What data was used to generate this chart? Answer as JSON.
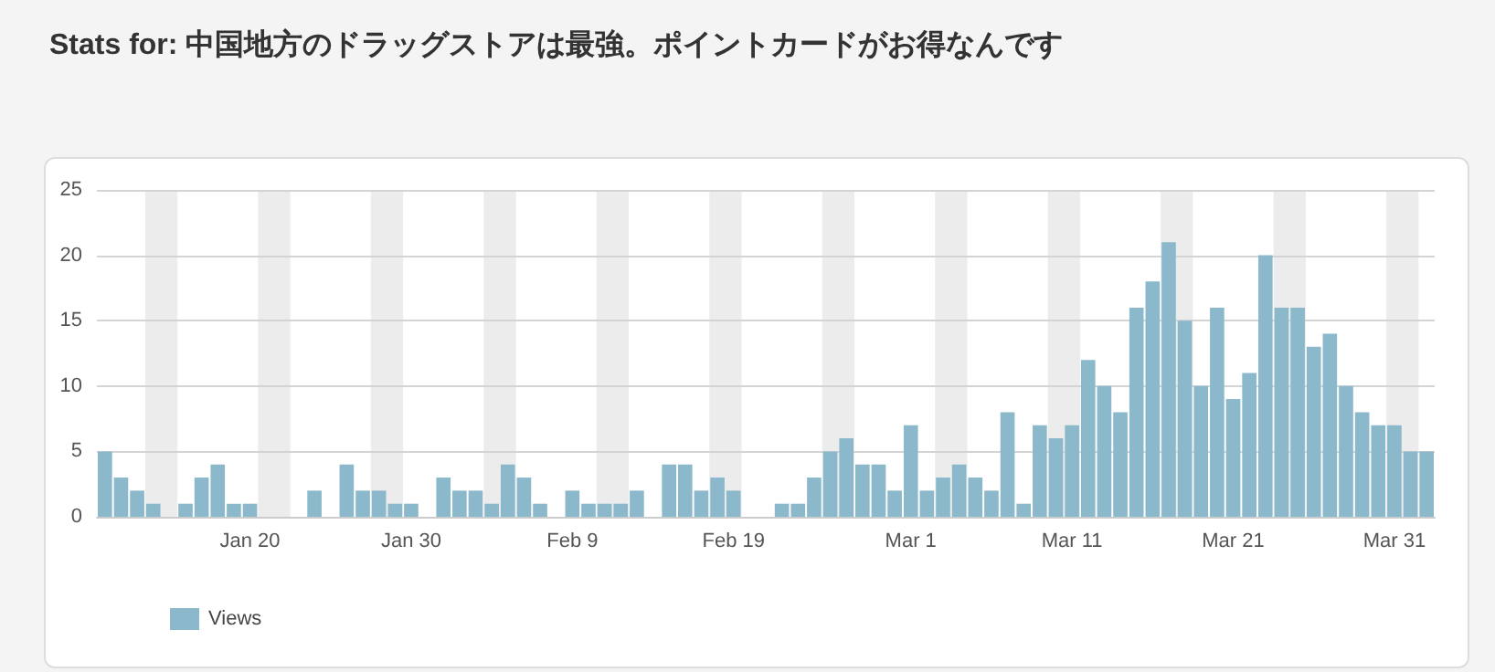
{
  "chart_data": {
    "type": "bar",
    "title": "Stats for: 中国地方のドラッグストアは最強。ポイントカードがお得なんです",
    "x": [
      "--01-11",
      "--01-12",
      "--01-13",
      "--01-14",
      "--01-15",
      "--01-16",
      "--01-17",
      "--01-18",
      "--01-19",
      "--01-20",
      "--01-21",
      "--01-22",
      "--01-23",
      "--01-24",
      "--01-25",
      "--01-26",
      "--01-27",
      "--01-28",
      "--01-29",
      "--01-30",
      "--01-31",
      "--02-01",
      "--02-02",
      "--02-03",
      "--02-04",
      "--02-05",
      "--02-06",
      "--02-07",
      "--02-08",
      "--02-09",
      "--02-10",
      "--02-11",
      "--02-12",
      "--02-13",
      "--02-14",
      "--02-15",
      "--02-16",
      "--02-17",
      "--02-18",
      "--02-19",
      "--02-20",
      "--02-21",
      "--02-22",
      "--02-23",
      "--02-24",
      "--02-25",
      "--02-26",
      "--02-27",
      "--02-28",
      "--02-29",
      "--03-01",
      "--03-02",
      "--03-03",
      "--03-04",
      "--03-05",
      "--03-06",
      "--03-07",
      "--03-08",
      "--03-09",
      "--03-10",
      "--03-11",
      "--03-12",
      "--03-13",
      "--03-14",
      "--03-15",
      "--03-16",
      "--03-17",
      "--03-18",
      "--03-19",
      "--03-20",
      "--03-21",
      "--03-22",
      "--03-23",
      "--03-24",
      "--03-25",
      "--03-26",
      "--03-27",
      "--03-28",
      "--03-29",
      "--03-30",
      "--03-31",
      "--04-01",
      "--04-02"
    ],
    "series": [
      {
        "name": "Views",
        "color": "#8cb8cc",
        "values": [
          5,
          3,
          2,
          1,
          0,
          1,
          3,
          4,
          1,
          1,
          0,
          0,
          0,
          2,
          0,
          4,
          2,
          2,
          1,
          1,
          0,
          3,
          2,
          2,
          1,
          4,
          3,
          1,
          0,
          2,
          1,
          1,
          1,
          2,
          0,
          4,
          4,
          2,
          3,
          2,
          0,
          0,
          1,
          1,
          3,
          5,
          6,
          4,
          4,
          2,
          7,
          2,
          3,
          4,
          3,
          2,
          8,
          1,
          7,
          6,
          7,
          12,
          10,
          8,
          16,
          18,
          21,
          15,
          10,
          16,
          9,
          11,
          20,
          16,
          16,
          13,
          14,
          10,
          8,
          7,
          7,
          5,
          5
        ]
      }
    ],
    "xlim": [
      "--01-10T12:00",
      "--04-02T12:00"
    ],
    "xticks": [
      {
        "value": "--01-20",
        "label": "Jan 20"
      },
      {
        "value": "--01-30",
        "label": "Jan 30"
      },
      {
        "value": "--02-09",
        "label": "Feb 9"
      },
      {
        "value": "--02-19",
        "label": "Feb 19"
      },
      {
        "value": "--03-01",
        "label": "Mar 1"
      },
      {
        "value": "--03-11",
        "label": "Mar 11"
      },
      {
        "value": "--03-21",
        "label": "Mar 21"
      },
      {
        "value": "--03-31",
        "label": "Mar 31"
      }
    ],
    "ylim": [
      0,
      25
    ],
    "yticks": [
      0,
      5,
      10,
      15,
      20,
      25
    ],
    "grid": "y",
    "legend": "bottom left",
    "bands": [
      {
        "axis": "x",
        "from": "--01-13T12:00",
        "to": "--01-15T12:00",
        "color": "#ececec"
      },
      {
        "axis": "x",
        "from": "--01-20T12:00",
        "to": "--01-22T12:00",
        "color": "#ececec"
      },
      {
        "axis": "x",
        "from": "--01-27T12:00",
        "to": "--01-29T12:00",
        "color": "#ececec"
      },
      {
        "axis": "x",
        "from": "--02-03T12:00",
        "to": "--02-05T12:00",
        "color": "#ececec"
      },
      {
        "axis": "x",
        "from": "--02-10T12:00",
        "to": "--02-12T12:00",
        "color": "#ececec"
      },
      {
        "axis": "x",
        "from": "--02-17T12:00",
        "to": "--02-19T12:00",
        "color": "#ececec"
      },
      {
        "axis": "x",
        "from": "--02-24T12:00",
        "to": "--02-26T12:00",
        "color": "#ececec"
      },
      {
        "axis": "x",
        "from": "--03-02T12:00",
        "to": "--03-04T12:00",
        "color": "#ececec"
      },
      {
        "axis": "x",
        "from": "--03-09T12:00",
        "to": "--03-11T12:00",
        "color": "#ececec"
      },
      {
        "axis": "x",
        "from": "--03-16T12:00",
        "to": "--03-18T12:00",
        "color": "#ececec"
      },
      {
        "axis": "x",
        "from": "--03-23T12:00",
        "to": "--03-25T12:00",
        "color": "#ececec"
      },
      {
        "axis": "x",
        "from": "--03-30T12:00",
        "to": "--04-01T12:00",
        "color": "#ececec"
      }
    ]
  }
}
